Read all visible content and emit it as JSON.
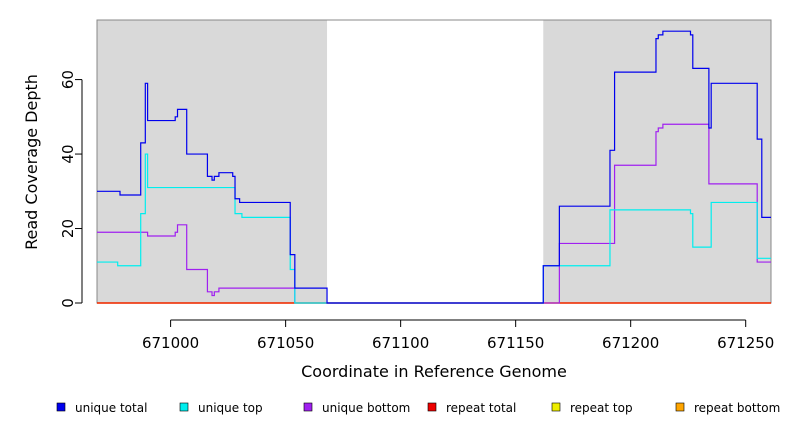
{
  "chart_data": {
    "type": "line",
    "step": true,
    "title": "",
    "xlabel": "Coordinate in Reference Genome",
    "ylabel": "Read Coverage Depth",
    "xlim": [
      670968,
      671261
    ],
    "ylim": [
      0,
      76
    ],
    "x_ticks": [
      671000,
      671050,
      671100,
      671150,
      671200,
      671250
    ],
    "x_tick_labels": [
      "671000",
      "671050",
      "671100",
      "671150",
      "671200",
      "671250"
    ],
    "y_ticks": [
      0,
      20,
      40,
      60
    ],
    "y_tick_labels": [
      "0",
      "20",
      "40",
      "60"
    ],
    "shaded_regions": [
      [
        670968,
        671068
      ],
      [
        671162,
        671261
      ]
    ],
    "shade_color": "#d9d9d9",
    "legend": {
      "position": "bottom"
    },
    "series": [
      {
        "name": "unique total",
        "color": "#0000ee",
        "points": [
          [
            670968,
            30
          ],
          [
            670978,
            30
          ],
          [
            670978,
            29
          ],
          [
            670987,
            29
          ],
          [
            670987,
            43
          ],
          [
            670989,
            43
          ],
          [
            670989,
            59
          ],
          [
            670990,
            59
          ],
          [
            670990,
            49
          ],
          [
            671002,
            49
          ],
          [
            671002,
            50
          ],
          [
            671003,
            50
          ],
          [
            671003,
            52
          ],
          [
            671007,
            52
          ],
          [
            671007,
            40
          ],
          [
            671016,
            40
          ],
          [
            671016,
            34
          ],
          [
            671018,
            34
          ],
          [
            671018,
            33
          ],
          [
            671019,
            33
          ],
          [
            671019,
            34
          ],
          [
            671021,
            34
          ],
          [
            671021,
            35
          ],
          [
            671027,
            35
          ],
          [
            671027,
            34
          ],
          [
            671028,
            34
          ],
          [
            671028,
            28
          ],
          [
            671030,
            28
          ],
          [
            671030,
            27
          ],
          [
            671052,
            27
          ],
          [
            671052,
            13
          ],
          [
            671054,
            13
          ],
          [
            671054,
            4
          ],
          [
            671068,
            4
          ],
          [
            671068,
            0
          ],
          [
            671162,
            0
          ],
          [
            671162,
            10
          ],
          [
            671169,
            10
          ],
          [
            671169,
            26
          ],
          [
            671191,
            26
          ],
          [
            671191,
            41
          ],
          [
            671193,
            41
          ],
          [
            671193,
            62
          ],
          [
            671211,
            62
          ],
          [
            671211,
            71
          ],
          [
            671212,
            71
          ],
          [
            671212,
            72
          ],
          [
            671214,
            72
          ],
          [
            671214,
            73
          ],
          [
            671226,
            73
          ],
          [
            671226,
            72
          ],
          [
            671227,
            72
          ],
          [
            671227,
            63
          ],
          [
            671234,
            63
          ],
          [
            671234,
            47
          ],
          [
            671235,
            47
          ],
          [
            671235,
            59
          ],
          [
            671255,
            59
          ],
          [
            671255,
            44
          ],
          [
            671257,
            44
          ],
          [
            671257,
            23
          ],
          [
            671261,
            23
          ]
        ]
      },
      {
        "name": "unique top",
        "color": "#00eeee",
        "points": [
          [
            670968,
            11
          ],
          [
            670977,
            11
          ],
          [
            670977,
            10
          ],
          [
            670987,
            10
          ],
          [
            670987,
            24
          ],
          [
            670989,
            24
          ],
          [
            670989,
            40
          ],
          [
            670990,
            40
          ],
          [
            670990,
            31
          ],
          [
            671028,
            31
          ],
          [
            671028,
            24
          ],
          [
            671031,
            24
          ],
          [
            671031,
            23
          ],
          [
            671052,
            23
          ],
          [
            671052,
            9
          ],
          [
            671054,
            9
          ],
          [
            671054,
            0
          ],
          [
            671162,
            0
          ],
          [
            671162,
            10
          ],
          [
            671191,
            10
          ],
          [
            671191,
            25
          ],
          [
            671226,
            25
          ],
          [
            671226,
            24
          ],
          [
            671227,
            24
          ],
          [
            671227,
            15
          ],
          [
            671235,
            15
          ],
          [
            671235,
            27
          ],
          [
            671255,
            27
          ],
          [
            671255,
            12
          ],
          [
            671261,
            12
          ]
        ]
      },
      {
        "name": "unique bottom",
        "color": "#a020f0",
        "points": [
          [
            670968,
            19
          ],
          [
            670990,
            19
          ],
          [
            670990,
            18
          ],
          [
            671002,
            18
          ],
          [
            671002,
            19
          ],
          [
            671003,
            19
          ],
          [
            671003,
            21
          ],
          [
            671007,
            21
          ],
          [
            671007,
            9
          ],
          [
            671016,
            9
          ],
          [
            671016,
            3
          ],
          [
            671018,
            3
          ],
          [
            671018,
            2
          ],
          [
            671019,
            2
          ],
          [
            671019,
            3
          ],
          [
            671021,
            3
          ],
          [
            671021,
            4
          ],
          [
            671054,
            4
          ],
          [
            671054,
            0
          ],
          [
            671169,
            0
          ],
          [
            671169,
            16
          ],
          [
            671193,
            16
          ],
          [
            671193,
            37
          ],
          [
            671211,
            37
          ],
          [
            671211,
            46
          ],
          [
            671212,
            46
          ],
          [
            671212,
            47
          ],
          [
            671214,
            47
          ],
          [
            671214,
            48
          ],
          [
            671234,
            48
          ],
          [
            671234,
            32
          ],
          [
            671255,
            32
          ],
          [
            671255,
            11
          ],
          [
            671261,
            11
          ]
        ]
      },
      {
        "name": "repeat total",
        "color": "#ee0000",
        "points": [
          [
            670968,
            0
          ],
          [
            671261,
            0
          ]
        ]
      },
      {
        "name": "repeat top",
        "color": "#eeee00",
        "points": [
          [
            670968,
            0
          ],
          [
            671261,
            0
          ]
        ]
      },
      {
        "name": "repeat bottom",
        "color": "#ffa500",
        "points": [
          [
            670968,
            0
          ],
          [
            671261,
            0
          ]
        ]
      }
    ]
  }
}
